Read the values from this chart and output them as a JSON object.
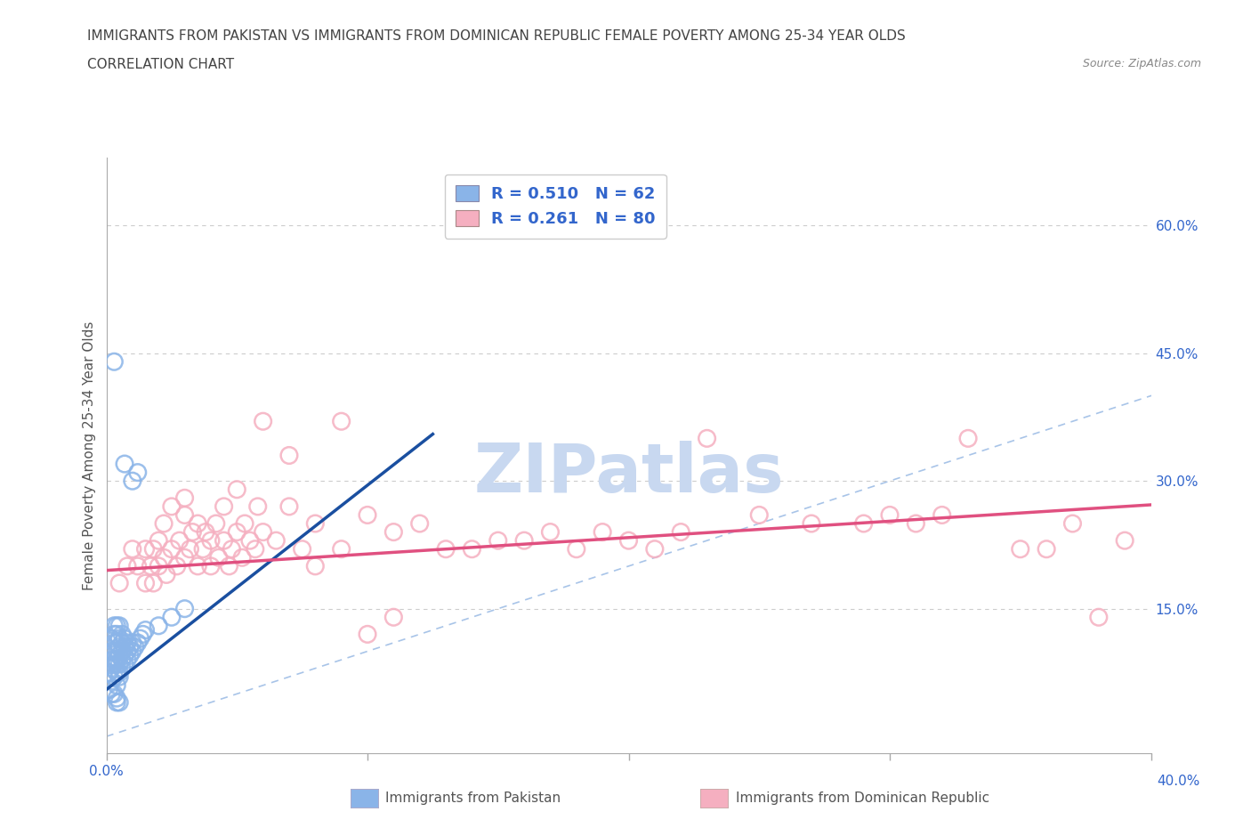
{
  "title_line1": "IMMIGRANTS FROM PAKISTAN VS IMMIGRANTS FROM DOMINICAN REPUBLIC FEMALE POVERTY AMONG 25-34 YEAR OLDS",
  "title_line2": "CORRELATION CHART",
  "source_text": "Source: ZipAtlas.com",
  "ylabel": "Female Poverty Among 25-34 Year Olds",
  "xlim": [
    0.0,
    0.4
  ],
  "ylim": [
    -0.02,
    0.68
  ],
  "xticks": [
    0.0,
    0.1,
    0.2,
    0.3,
    0.4
  ],
  "xtick_labels_bottom": [
    "0.0%",
    "",
    "",
    "",
    ""
  ],
  "right_yticks": [
    0.15,
    0.3,
    0.45,
    0.6
  ],
  "right_ytick_labels": [
    "15.0%",
    "30.0%",
    "45.0%",
    "60.0%"
  ],
  "grid_yticks": [
    0.15,
    0.3,
    0.45,
    0.6
  ],
  "pakistan_color": "#8ab4e8",
  "dominican_color": "#f5afc0",
  "pakistan_R": 0.51,
  "pakistan_N": 62,
  "dominican_R": 0.261,
  "dominican_N": 80,
  "legend_label_pakistan": "Immigrants from Pakistan",
  "legend_label_dominican": "Immigrants from Dominican Republic",
  "pakistan_scatter": [
    [
      0.001,
      0.075
    ],
    [
      0.002,
      0.065
    ],
    [
      0.002,
      0.08
    ],
    [
      0.002,
      0.09
    ],
    [
      0.002,
      0.1
    ],
    [
      0.002,
      0.115
    ],
    [
      0.003,
      0.07
    ],
    [
      0.003,
      0.085
    ],
    [
      0.003,
      0.09
    ],
    [
      0.003,
      0.1
    ],
    [
      0.003,
      0.11
    ],
    [
      0.003,
      0.12
    ],
    [
      0.003,
      0.13
    ],
    [
      0.004,
      0.06
    ],
    [
      0.004,
      0.075
    ],
    [
      0.004,
      0.085
    ],
    [
      0.004,
      0.09
    ],
    [
      0.004,
      0.1
    ],
    [
      0.004,
      0.11
    ],
    [
      0.004,
      0.12
    ],
    [
      0.004,
      0.13
    ],
    [
      0.005,
      0.07
    ],
    [
      0.005,
      0.075
    ],
    [
      0.005,
      0.085
    ],
    [
      0.005,
      0.095
    ],
    [
      0.005,
      0.105
    ],
    [
      0.005,
      0.115
    ],
    [
      0.005,
      0.13
    ],
    [
      0.006,
      0.08
    ],
    [
      0.006,
      0.09
    ],
    [
      0.006,
      0.1
    ],
    [
      0.006,
      0.11
    ],
    [
      0.006,
      0.12
    ],
    [
      0.007,
      0.085
    ],
    [
      0.007,
      0.095
    ],
    [
      0.007,
      0.105
    ],
    [
      0.007,
      0.115
    ],
    [
      0.008,
      0.09
    ],
    [
      0.008,
      0.1
    ],
    [
      0.008,
      0.11
    ],
    [
      0.009,
      0.095
    ],
    [
      0.009,
      0.105
    ],
    [
      0.01,
      0.1
    ],
    [
      0.01,
      0.11
    ],
    [
      0.011,
      0.105
    ],
    [
      0.012,
      0.11
    ],
    [
      0.013,
      0.115
    ],
    [
      0.014,
      0.12
    ],
    [
      0.015,
      0.125
    ],
    [
      0.02,
      0.13
    ],
    [
      0.025,
      0.14
    ],
    [
      0.03,
      0.15
    ],
    [
      0.001,
      0.055
    ],
    [
      0.002,
      0.05
    ],
    [
      0.003,
      0.05
    ],
    [
      0.004,
      0.045
    ],
    [
      0.004,
      0.04
    ],
    [
      0.005,
      0.04
    ],
    [
      0.003,
      0.44
    ],
    [
      0.007,
      0.32
    ],
    [
      0.012,
      0.31
    ],
    [
      0.01,
      0.3
    ]
  ],
  "dominican_scatter": [
    [
      0.005,
      0.18
    ],
    [
      0.008,
      0.2
    ],
    [
      0.01,
      0.22
    ],
    [
      0.012,
      0.2
    ],
    [
      0.015,
      0.18
    ],
    [
      0.015,
      0.22
    ],
    [
      0.017,
      0.2
    ],
    [
      0.018,
      0.22
    ],
    [
      0.018,
      0.18
    ],
    [
      0.02,
      0.2
    ],
    [
      0.02,
      0.23
    ],
    [
      0.022,
      0.21
    ],
    [
      0.022,
      0.25
    ],
    [
      0.023,
      0.19
    ],
    [
      0.025,
      0.22
    ],
    [
      0.025,
      0.27
    ],
    [
      0.027,
      0.2
    ],
    [
      0.028,
      0.23
    ],
    [
      0.03,
      0.21
    ],
    [
      0.03,
      0.26
    ],
    [
      0.03,
      0.28
    ],
    [
      0.032,
      0.22
    ],
    [
      0.033,
      0.24
    ],
    [
      0.035,
      0.2
    ],
    [
      0.035,
      0.25
    ],
    [
      0.037,
      0.22
    ],
    [
      0.038,
      0.24
    ],
    [
      0.04,
      0.2
    ],
    [
      0.04,
      0.23
    ],
    [
      0.042,
      0.25
    ],
    [
      0.043,
      0.21
    ],
    [
      0.045,
      0.23
    ],
    [
      0.045,
      0.27
    ],
    [
      0.047,
      0.2
    ],
    [
      0.048,
      0.22
    ],
    [
      0.05,
      0.24
    ],
    [
      0.05,
      0.29
    ],
    [
      0.052,
      0.21
    ],
    [
      0.053,
      0.25
    ],
    [
      0.055,
      0.23
    ],
    [
      0.057,
      0.22
    ],
    [
      0.058,
      0.27
    ],
    [
      0.06,
      0.24
    ],
    [
      0.06,
      0.37
    ],
    [
      0.065,
      0.23
    ],
    [
      0.07,
      0.27
    ],
    [
      0.07,
      0.33
    ],
    [
      0.075,
      0.22
    ],
    [
      0.08,
      0.25
    ],
    [
      0.08,
      0.2
    ],
    [
      0.09,
      0.22
    ],
    [
      0.09,
      0.37
    ],
    [
      0.1,
      0.26
    ],
    [
      0.1,
      0.12
    ],
    [
      0.11,
      0.24
    ],
    [
      0.11,
      0.14
    ],
    [
      0.12,
      0.25
    ],
    [
      0.13,
      0.22
    ],
    [
      0.14,
      0.22
    ],
    [
      0.15,
      0.23
    ],
    [
      0.16,
      0.23
    ],
    [
      0.17,
      0.24
    ],
    [
      0.18,
      0.22
    ],
    [
      0.19,
      0.24
    ],
    [
      0.2,
      0.23
    ],
    [
      0.21,
      0.22
    ],
    [
      0.22,
      0.24
    ],
    [
      0.23,
      0.35
    ],
    [
      0.25,
      0.26
    ],
    [
      0.27,
      0.25
    ],
    [
      0.29,
      0.25
    ],
    [
      0.3,
      0.26
    ],
    [
      0.31,
      0.25
    ],
    [
      0.32,
      0.26
    ],
    [
      0.33,
      0.35
    ],
    [
      0.35,
      0.22
    ],
    [
      0.36,
      0.22
    ],
    [
      0.37,
      0.25
    ],
    [
      0.38,
      0.14
    ],
    [
      0.39,
      0.23
    ]
  ],
  "pakistan_line_color": "#1a4fa0",
  "dominican_line_color": "#e05080",
  "pakistan_line_x": [
    0.0,
    0.125
  ],
  "pakistan_line_y": [
    0.055,
    0.355
  ],
  "dominican_line_x": [
    0.0,
    0.4
  ],
  "dominican_line_y": [
    0.195,
    0.272
  ],
  "diagonal_color": "#a8c4e8",
  "background_color": "#ffffff",
  "watermark_text": "ZIPatlas",
  "watermark_color": "#c8d8f0"
}
